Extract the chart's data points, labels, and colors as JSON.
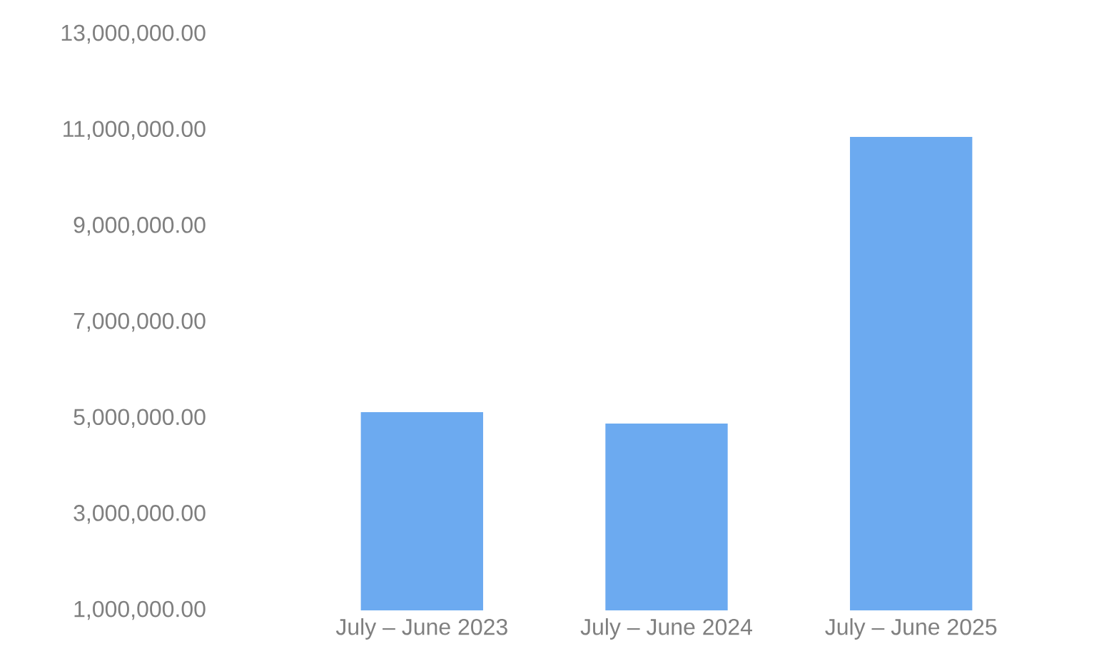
{
  "chart_data": {
    "type": "bar",
    "categories": [
      "July – June 2023",
      "July – June 2024",
      "July – June 2025"
    ],
    "values": [
      5130000,
      4890000,
      10860000
    ],
    "color": "#6caaf0",
    "ylim": [
      1000000,
      13000000
    ],
    "yticks": [
      {
        "value": 1000000,
        "label": "1,000,000.00"
      },
      {
        "value": 3000000,
        "label": "3,000,000.00"
      },
      {
        "value": 5000000,
        "label": "5,000,000.00"
      },
      {
        "value": 7000000,
        "label": "7,000,000.00"
      },
      {
        "value": 9000000,
        "label": "9,000,000.00"
      },
      {
        "value": 11000000,
        "label": "11,000,000.00"
      },
      {
        "value": 13000000,
        "label": "13,000,000.00"
      }
    ],
    "grid": false
  }
}
